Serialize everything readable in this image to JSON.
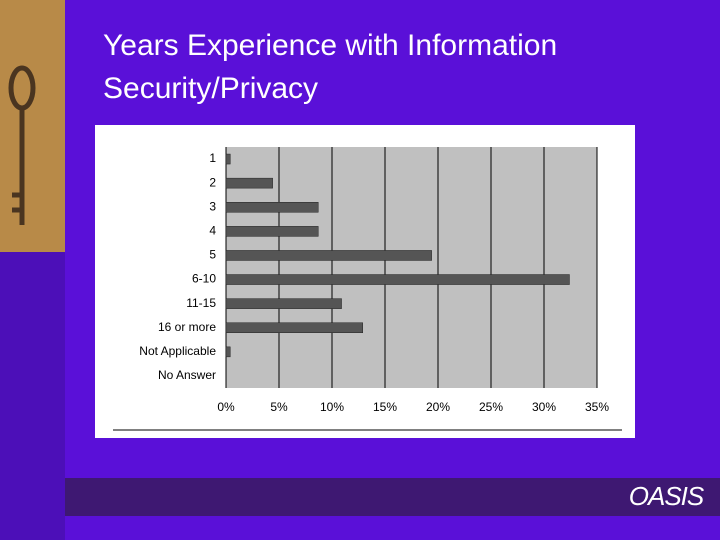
{
  "chart_data": {
    "type": "barh",
    "title": "Years Experience with Information Security/Privacy",
    "categories": [
      "1",
      "2",
      "3",
      "4",
      "5",
      "6-10",
      "11-15",
      "16 or more",
      "Not Applicable",
      "No Answer"
    ],
    "values": [
      0.4,
      4.4,
      8.7,
      8.7,
      19.4,
      32.4,
      10.9,
      12.9,
      0.4,
      0
    ],
    "color": "#555555",
    "xlim": [
      0,
      35
    ],
    "xticks": [
      {
        "value": 0,
        "label": "0%"
      },
      {
        "value": 5,
        "label": "5%"
      },
      {
        "value": 10,
        "label": "10%"
      },
      {
        "value": 15,
        "label": "15%"
      },
      {
        "value": 20,
        "label": "20%"
      },
      {
        "value": 25,
        "label": "25%"
      },
      {
        "value": 30,
        "label": "30%"
      },
      {
        "value": 35,
        "label": "35%"
      }
    ],
    "grid": true
  },
  "slide": {
    "logo": "OASIS"
  }
}
